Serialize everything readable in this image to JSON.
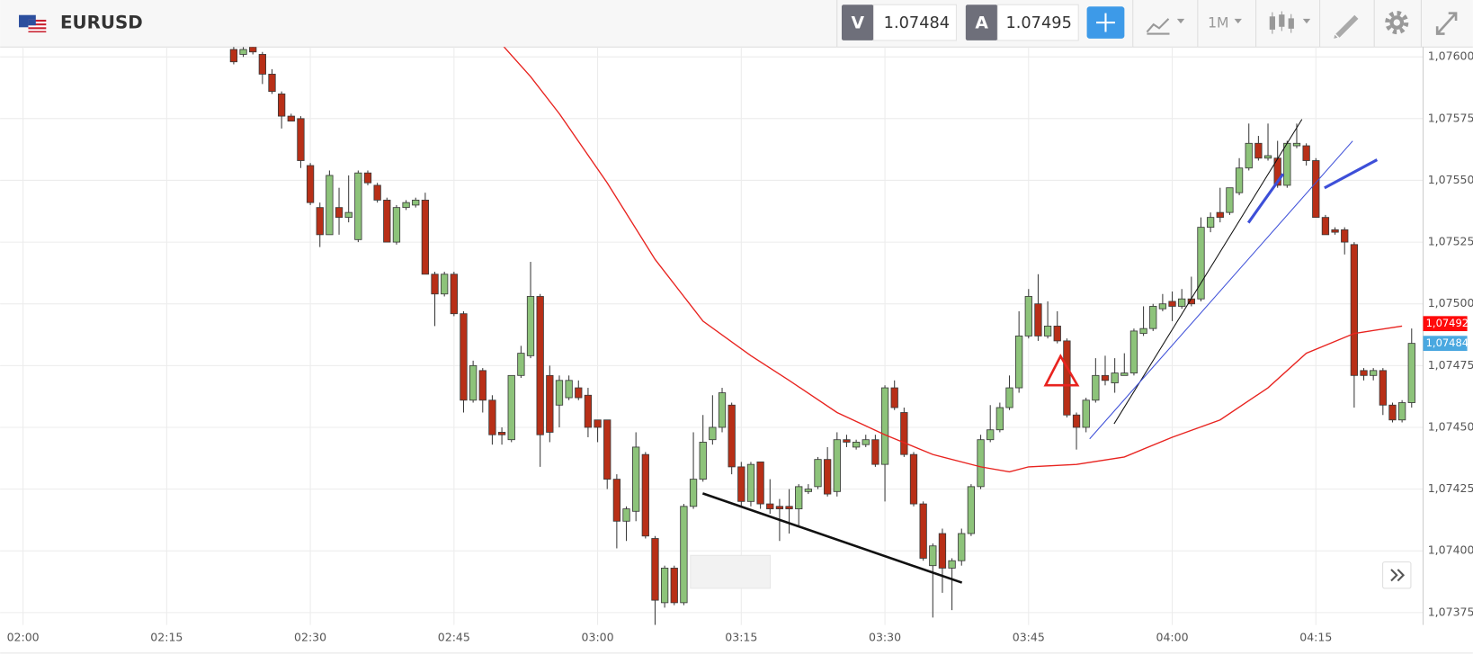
{
  "toolbar": {
    "symbol": "EURUSD",
    "bid_label": "V",
    "bid_price": "1.07484",
    "ask_label": "A",
    "ask_price": "1.07495",
    "timeframe": "1M"
  },
  "chart_data": {
    "type": "candlestick",
    "xlim": [
      "01:58",
      "04:26"
    ],
    "xticks": [
      "02:00",
      "02:15",
      "02:30",
      "02:45",
      "03:00",
      "03:15",
      "03:30",
      "03:45",
      "04:00",
      "04:15"
    ],
    "ylim": [
      1.0737,
      1.07604
    ],
    "yticks": [
      {
        "value": 1.07375,
        "label": "1,07375"
      },
      {
        "value": 1.074,
        "label": "1,07400"
      },
      {
        "value": 1.07425,
        "label": "1,07425"
      },
      {
        "value": 1.0745,
        "label": "1,07450"
      },
      {
        "value": 1.07475,
        "label": "1,07475"
      },
      {
        "value": 1.075,
        "label": "1,07500"
      },
      {
        "value": 1.07525,
        "label": "1,07525"
      },
      {
        "value": 1.0755,
        "label": "1,07550"
      },
      {
        "value": 1.07575,
        "label": "1,07575"
      },
      {
        "value": 1.076,
        "label": "1,07600"
      }
    ],
    "grid": true,
    "up_color": "#8dc37a",
    "down_color": "#b82f17",
    "x": [
      "02:22",
      "02:23",
      "02:24",
      "02:25",
      "02:26",
      "02:27",
      "02:28",
      "02:29",
      "02:30",
      "02:31",
      "02:32",
      "02:33",
      "02:34",
      "02:35",
      "02:36",
      "02:37",
      "02:38",
      "02:39",
      "02:40",
      "02:41",
      "02:42",
      "02:43",
      "02:44",
      "02:45",
      "02:46",
      "02:47",
      "02:48",
      "02:49",
      "02:50",
      "02:51",
      "02:52",
      "02:53",
      "02:54",
      "02:55",
      "02:56",
      "02:57",
      "02:58",
      "02:59",
      "03:00",
      "03:01",
      "03:02",
      "03:03",
      "03:04",
      "03:05",
      "03:06",
      "03:07",
      "03:08",
      "03:09",
      "03:10",
      "03:11",
      "03:12",
      "03:13",
      "03:14",
      "03:15",
      "03:16",
      "03:17",
      "03:18",
      "03:19",
      "03:20",
      "03:21",
      "03:22",
      "03:23",
      "03:24",
      "03:25",
      "03:26",
      "03:27",
      "03:28",
      "03:29",
      "03:30",
      "03:31",
      "03:32",
      "03:33",
      "03:34",
      "03:35",
      "03:36",
      "03:37",
      "03:38",
      "03:39",
      "03:40",
      "03:41",
      "03:42",
      "03:43",
      "03:44",
      "03:45",
      "03:46",
      "03:47",
      "03:48",
      "03:49",
      "03:50",
      "03:51",
      "03:52",
      "03:53",
      "03:54",
      "03:55",
      "03:56",
      "03:57",
      "03:58",
      "03:59",
      "04:00",
      "04:01",
      "04:02",
      "04:03",
      "04:04",
      "04:05",
      "04:06",
      "04:07",
      "04:08",
      "04:09",
      "04:10",
      "04:11",
      "04:12",
      "04:13",
      "04:14",
      "04:15",
      "04:16",
      "04:17",
      "04:18",
      "04:19",
      "04:20",
      "04:21",
      "04:22",
      "04:23",
      "04:24",
      "04:25"
    ],
    "open": [
      1.07603,
      1.07601,
      1.07604,
      1.07601,
      1.07593,
      1.07585,
      1.07576,
      1.07575,
      1.07556,
      1.07539,
      1.07528,
      1.07539,
      1.07535,
      1.07526,
      1.07553,
      1.07548,
      1.07542,
      1.07525,
      1.07539,
      1.0754,
      1.07542,
      1.07512,
      1.07504,
      1.07512,
      1.07496,
      1.07461,
      1.07473,
      1.07461,
      1.07448,
      1.07445,
      1.07471,
      1.07479,
      1.07503,
      1.07471,
      1.07459,
      1.07462,
      1.07466,
      1.07463,
      1.07453,
      1.07453,
      1.07429,
      1.07412,
      1.07416,
      1.07439,
      1.07405,
      1.07379,
      1.07393,
      1.07379,
      1.07418,
      1.07429,
      1.07445,
      1.0745,
      1.07459,
      1.07434,
      1.0742,
      1.07436,
      1.07419,
      1.07418,
      1.07418,
      1.07417,
      1.07424,
      1.07426,
      1.07437,
      1.07424,
      1.07445,
      1.07442,
      1.07443,
      1.07445,
      1.07435,
      1.07466,
      1.07456,
      1.07439,
      1.07419,
      1.07394,
      1.07407,
      1.07393,
      1.07396,
      1.07407,
      1.07426,
      1.07445,
      1.07449,
      1.07458,
      1.07466,
      1.07487,
      1.075,
      1.07487,
      1.07491,
      1.07485,
      1.07455,
      1.0745,
      1.07461,
      1.07471,
      1.07468,
      1.07471,
      1.07472,
      1.07488,
      1.0749,
      1.07498,
      1.07501,
      1.07499,
      1.07502,
      1.07502,
      1.07531,
      1.07537,
      1.07537,
      1.07545,
      1.07555,
      1.07565,
      1.07559,
      1.07559,
      1.07548,
      1.07564,
      1.07564,
      1.07558,
      1.07535,
      1.0753,
      1.0753,
      1.07524,
      1.07473,
      1.07471,
      1.07473,
      1.07459,
      1.07453,
      1.0746
    ],
    "high": [
      1.07605,
      1.07604,
      1.07605,
      1.07602,
      1.07595,
      1.07586,
      1.07577,
      1.07576,
      1.07557,
      1.07541,
      1.07554,
      1.07547,
      1.07552,
      1.07554,
      1.07554,
      1.07549,
      1.07543,
      1.0754,
      1.07542,
      1.07543,
      1.07545,
      1.07513,
      1.07513,
      1.07513,
      1.07497,
      1.07477,
      1.07474,
      1.07463,
      1.0745,
      1.07471,
      1.07483,
      1.07517,
      1.07504,
      1.07475,
      1.07471,
      1.07471,
      1.07469,
      1.07466,
      1.07453,
      1.07453,
      1.07431,
      1.07418,
      1.07448,
      1.0744,
      1.07406,
      1.07394,
      1.07394,
      1.07419,
      1.07448,
      1.07455,
      1.07463,
      1.07466,
      1.0746,
      1.07436,
      1.07436,
      1.07436,
      1.07429,
      1.07421,
      1.07425,
      1.07427,
      1.07427,
      1.07438,
      1.07442,
      1.07448,
      1.07447,
      1.07445,
      1.07447,
      1.07447,
      1.07467,
      1.07469,
      1.07458,
      1.0744,
      1.0742,
      1.07403,
      1.07409,
      1.07397,
      1.07409,
      1.07427,
      1.07447,
      1.07459,
      1.0746,
      1.07471,
      1.07497,
      1.07506,
      1.07512,
      1.07501,
      1.07497,
      1.07486,
      1.07456,
      1.07462,
      1.07478,
      1.07479,
      1.07478,
      1.0748,
      1.0749,
      1.07499,
      1.075,
      1.07504,
      1.07505,
      1.07506,
      1.07511,
      1.07535,
      1.07537,
      1.07547,
      1.07547,
      1.07559,
      1.07573,
      1.07568,
      1.07573,
      1.07566,
      1.07566,
      1.07573,
      1.07565,
      1.07559,
      1.07536,
      1.07531,
      1.07531,
      1.07525,
      1.07474,
      1.07474,
      1.07474,
      1.0746,
      1.07461,
      1.0749
    ],
    "low": [
      1.07597,
      1.076,
      1.07601,
      1.07589,
      1.07585,
      1.07571,
      1.07574,
      1.07555,
      1.0754,
      1.07523,
      1.07528,
      1.07528,
      1.07533,
      1.07525,
      1.07548,
      1.07541,
      1.07525,
      1.07524,
      1.07538,
      1.07539,
      1.07512,
      1.07491,
      1.07503,
      1.07495,
      1.07456,
      1.0746,
      1.07456,
      1.07443,
      1.07443,
      1.07444,
      1.0747,
      1.07478,
      1.07434,
      1.07444,
      1.0745,
      1.07461,
      1.07461,
      1.07446,
      1.07444,
      1.07425,
      1.07401,
      1.07404,
      1.07412,
      1.07405,
      1.0737,
      1.07377,
      1.07378,
      1.07378,
      1.07417,
      1.07428,
      1.07443,
      1.07448,
      1.07431,
      1.07418,
      1.07418,
      1.07417,
      1.07415,
      1.07404,
      1.07407,
      1.0741,
      1.07423,
      1.07425,
      1.07422,
      1.07422,
      1.07442,
      1.07441,
      1.07442,
      1.07434,
      1.0742,
      1.07457,
      1.07438,
      1.07418,
      1.07396,
      1.07373,
      1.07383,
      1.07376,
      1.07394,
      1.07406,
      1.07425,
      1.07444,
      1.07448,
      1.07457,
      1.07464,
      1.07486,
      1.07485,
      1.07486,
      1.07484,
      1.07454,
      1.07441,
      1.07448,
      1.0746,
      1.07467,
      1.07464,
      1.07471,
      1.07471,
      1.07487,
      1.07489,
      1.07497,
      1.07493,
      1.07498,
      1.07499,
      1.07501,
      1.07529,
      1.07533,
      1.07536,
      1.07544,
      1.07554,
      1.07558,
      1.07558,
      1.07547,
      1.07547,
      1.07563,
      1.07556,
      1.07535,
      1.07528,
      1.07528,
      1.0752,
      1.07458,
      1.07469,
      1.07469,
      1.07455,
      1.07452,
      1.07452,
      1.07458
    ],
    "close": [
      1.07598,
      1.07603,
      1.07602,
      1.07593,
      1.07586,
      1.07576,
      1.07574,
      1.07558,
      1.07541,
      1.07528,
      1.07552,
      1.07535,
      1.07537,
      1.07553,
      1.07549,
      1.07542,
      1.07525,
      1.07539,
      1.07541,
      1.07542,
      1.07512,
      1.07504,
      1.07512,
      1.07496,
      1.07461,
      1.07475,
      1.07461,
      1.07447,
      1.07447,
      1.07471,
      1.0748,
      1.07503,
      1.07447,
      1.07448,
      1.07469,
      1.07469,
      1.07462,
      1.0745,
      1.0745,
      1.07429,
      1.07412,
      1.07417,
      1.07442,
      1.07406,
      1.0738,
      1.07393,
      1.07379,
      1.07418,
      1.07429,
      1.07444,
      1.0745,
      1.07464,
      1.07434,
      1.0742,
      1.07435,
      1.07419,
      1.07417,
      1.07417,
      1.07417,
      1.07426,
      1.07425,
      1.07437,
      1.07423,
      1.07445,
      1.07444,
      1.07444,
      1.07445,
      1.07435,
      1.07466,
      1.07458,
      1.07439,
      1.07419,
      1.07397,
      1.07402,
      1.07393,
      1.07396,
      1.07407,
      1.07426,
      1.07445,
      1.07449,
      1.07458,
      1.07466,
      1.07487,
      1.07503,
      1.07487,
      1.07491,
      1.07485,
      1.07455,
      1.0745,
      1.07461,
      1.07471,
      1.07469,
      1.07472,
      1.07472,
      1.07489,
      1.0749,
      1.07499,
      1.075,
      1.07499,
      1.07502,
      1.075,
      1.07531,
      1.07535,
      1.07535,
      1.07547,
      1.07555,
      1.07565,
      1.07559,
      1.0756,
      1.07548,
      1.07565,
      1.07565,
      1.07558,
      1.07535,
      1.07528,
      1.07529,
      1.07525,
      1.07471,
      1.07471,
      1.07473,
      1.07459,
      1.07453,
      1.0746,
      1.07484
    ],
    "moving_average": {
      "color": "#e8231f",
      "x": [
        "02:50",
        "02:53",
        "02:56",
        "03:01",
        "03:06",
        "03:11",
        "03:16",
        "03:20",
        "03:25",
        "03:30",
        "03:35",
        "03:40",
        "03:43",
        "03:45",
        "03:50",
        "03:55",
        "04:00",
        "04:05",
        "04:10",
        "04:14",
        "04:19",
        "04:24"
      ],
      "values": [
        1.07605,
        1.07592,
        1.07577,
        1.07549,
        1.07518,
        1.07493,
        1.07479,
        1.07469,
        1.07456,
        1.07447,
        1.07439,
        1.07434,
        1.07432,
        1.07434,
        1.07435,
        1.07438,
        1.07446,
        1.07453,
        1.07466,
        1.0748,
        1.07488,
        1.07491
      ]
    },
    "price_markers": [
      {
        "value": 1.07492,
        "label": "1,07492",
        "color": "#ff0a0a"
      },
      {
        "value": 1.07484,
        "label": "1,07484",
        "color": "#4aa8e0"
      }
    ]
  }
}
